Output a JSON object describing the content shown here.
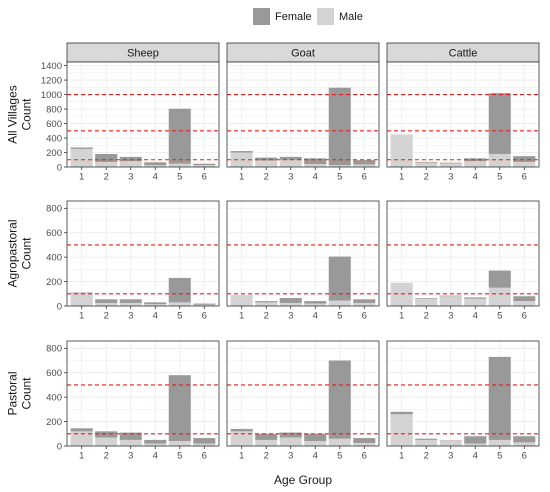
{
  "chart_data": {
    "type": "bar",
    "stacked": true,
    "xlabel": "Age Group",
    "x_categories": [
      "1",
      "2",
      "3",
      "4",
      "5",
      "6"
    ],
    "columns": [
      "Sheep",
      "Goat",
      "Cattle"
    ],
    "legend": {
      "placement": "top",
      "entries": [
        {
          "name": "Female",
          "color": "#999999"
        },
        {
          "name": "Male",
          "color": "#d3d3d3"
        }
      ]
    },
    "reference_lines": {
      "values": [
        100,
        500,
        1000
      ],
      "color": "#e0201b",
      "style": "dashed"
    },
    "grid": true,
    "rows": [
      {
        "label_line1": "All Villages",
        "label_line2": "Count",
        "ylim": [
          0,
          1450
        ],
        "yticks": [
          0,
          200,
          400,
          600,
          800,
          1000,
          1200,
          1400
        ],
        "reference_lines": [
          100,
          500,
          1000
        ],
        "panels": [
          {
            "animal": "Sheep",
            "female": [
              20,
              110,
              60,
              40,
              760,
              20
            ],
            "male": [
              250,
              70,
              80,
              25,
              45,
              25
            ]
          },
          {
            "animal": "Goat",
            "female": [
              20,
              40,
              40,
              80,
              1070,
              60
            ],
            "male": [
              200,
              90,
              100,
              40,
              25,
              35
            ]
          },
          {
            "animal": "Cattle",
            "female": [
              0,
              10,
              10,
              40,
              840,
              80
            ],
            "male": [
              450,
              60,
              50,
              80,
              180,
              70
            ]
          }
        ]
      },
      {
        "label_line1": "Agropastoral",
        "label_line2": "Count",
        "ylim": [
          0,
          860
        ],
        "yticks": [
          0,
          200,
          400,
          600,
          800
        ],
        "reference_lines": [
          100,
          500
        ],
        "panels": [
          {
            "animal": "Sheep",
            "female": [
              5,
              30,
              30,
              15,
              200,
              10
            ],
            "male": [
              105,
              25,
              25,
              15,
              30,
              10
            ]
          },
          {
            "animal": "Goat",
            "female": [
              0,
              10,
              40,
              20,
              360,
              30
            ],
            "male": [
              90,
              30,
              25,
              20,
              45,
              25
            ]
          },
          {
            "animal": "Cattle",
            "female": [
              0,
              5,
              5,
              10,
              140,
              40
            ],
            "male": [
              190,
              60,
              80,
              60,
              150,
              40
            ]
          }
        ]
      },
      {
        "label_line1": "Pastoral",
        "label_line2": "Count",
        "ylim": [
          0,
          860
        ],
        "yticks": [
          0,
          200,
          400,
          600,
          800
        ],
        "reference_lines": [
          100,
          500
        ],
        "panels": [
          {
            "animal": "Sheep",
            "female": [
              25,
              50,
              60,
              30,
              540,
              45
            ],
            "male": [
              120,
              70,
              50,
              20,
              40,
              20
            ]
          },
          {
            "animal": "Goat",
            "female": [
              20,
              50,
              40,
              60,
              640,
              40
            ],
            "male": [
              120,
              50,
              70,
              40,
              60,
              25
            ]
          },
          {
            "animal": "Cattle",
            "female": [
              20,
              10,
              5,
              60,
              680,
              50
            ],
            "male": [
              260,
              50,
              40,
              20,
              50,
              30
            ]
          }
        ]
      }
    ]
  }
}
